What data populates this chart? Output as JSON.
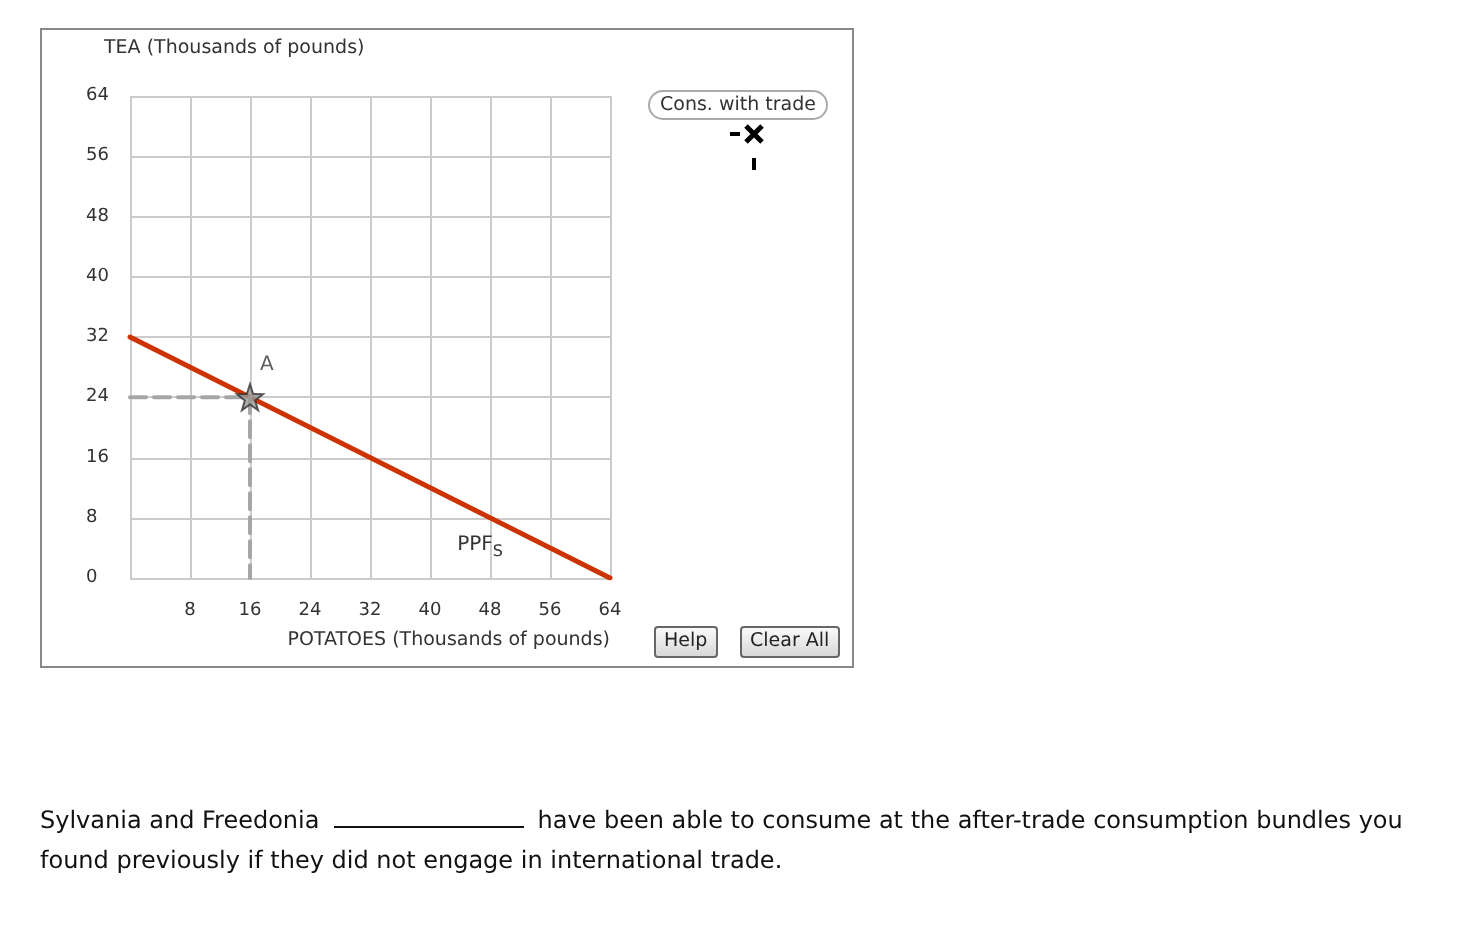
{
  "chart_data": {
    "type": "line",
    "xlabel": "POTATOES (Thousands of pounds)",
    "ylabel": "TEA (Thousands of pounds)",
    "xlim": [
      0,
      64
    ],
    "ylim": [
      0,
      64
    ],
    "xticks": [
      {
        "value": 0,
        "label": null
      },
      8,
      16,
      24,
      32,
      40,
      48,
      56,
      64
    ],
    "yticks": [
      0,
      8,
      16,
      24,
      32,
      40,
      48,
      56,
      64
    ],
    "grid": true,
    "legend": false,
    "series": [
      {
        "name": "PPF$_{S}$",
        "color": "#cc3300",
        "x": [
          0,
          64
        ],
        "values": [
          32,
          0
        ],
        "marker": "none",
        "line_style": "solid"
      },
      {
        "color": "#a6a6a6",
        "x": [
          0,
          16,
          16
        ],
        "values": [
          24,
          24,
          0
        ],
        "marker": "none",
        "line_style": "dashed"
      },
      {
        "type": "scatter",
        "name": "A",
        "color": "#999999",
        "x": [
          16
        ],
        "values": [
          24
        ],
        "marker": "star"
      }
    ],
    "annotations": [
      "Cons. with trade",
      "Help",
      "Clear All",
      "Sylvania and Freedonia",
      "have been able to consume at the after-trade consumption bundles you found previously if they did not engage in international trade."
    ]
  }
}
